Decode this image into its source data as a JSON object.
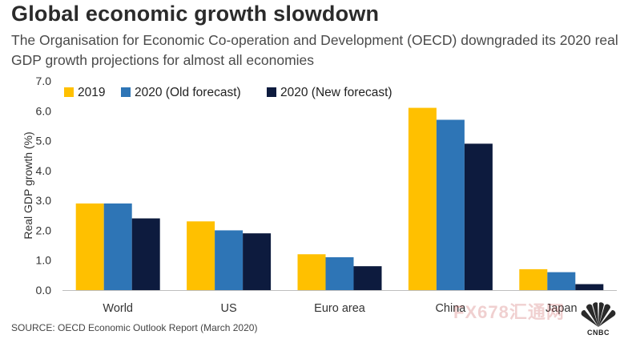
{
  "header": {
    "title": "Global economic growth slowdown",
    "subtitle": "The Organisation for Economic Co-operation and Development (OECD) downgraded its 2020 real GDP growth projections for almost all economies"
  },
  "footer": {
    "source": "SOURCE: OECD Economic Outlook Report (March 2020)",
    "watermark": "FX678汇通网",
    "logo_text": "CNBC"
  },
  "chart_data": {
    "type": "bar",
    "categories": [
      "World",
      "US",
      "Euro area",
      "China",
      "Japan"
    ],
    "series": [
      {
        "name": "2019",
        "color": "#FFC000",
        "values": [
          2.9,
          2.3,
          1.2,
          6.1,
          0.7
        ]
      },
      {
        "name": "2020 (Old forecast)",
        "color": "#2E75B6",
        "values": [
          2.9,
          2.0,
          1.1,
          5.7,
          0.6
        ]
      },
      {
        "name": "2020 (New forecast)",
        "color": "#0D1B3E",
        "values": [
          2.4,
          1.9,
          0.8,
          4.9,
          0.2
        ]
      }
    ],
    "ylabel": "Real GDP growth (%)",
    "xlabel": "",
    "ylim": [
      0,
      7
    ],
    "yticks": [
      "0.0",
      "1.0",
      "2.0",
      "3.0",
      "4.0",
      "5.0",
      "6.0",
      "7.0"
    ],
    "grid": false,
    "legend_position": "top-left"
  }
}
